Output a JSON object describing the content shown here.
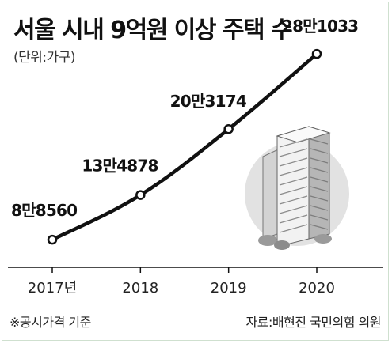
{
  "title": "서울 시내 9억원 이상 주택 수",
  "unit_note": "(단위:가구)",
  "footnote": "※공시가격 기준",
  "source": "자료:배현진 국민의힘 의원",
  "chart_data": {
    "type": "line",
    "categories": [
      "2017년",
      "2018",
      "2019",
      "2020"
    ],
    "values": [
      88560,
      134878,
      203174,
      281033
    ],
    "value_labels": [
      "8만8560",
      "13만4878",
      "20만3174",
      "28만1033"
    ],
    "ylim": [
      60000,
      300000
    ],
    "grid": false,
    "line_color": "#111111"
  }
}
